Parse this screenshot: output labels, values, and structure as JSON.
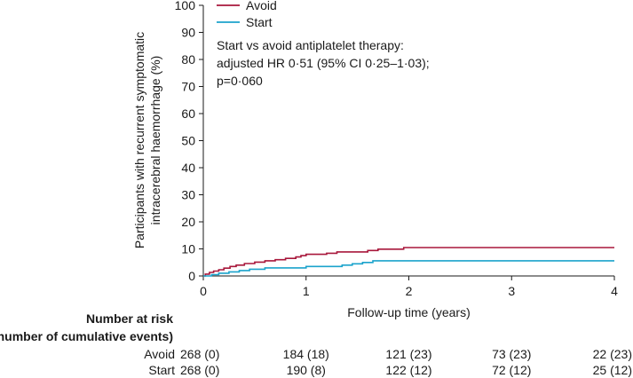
{
  "chart_data": {
    "type": "line",
    "step": true,
    "ylabel_lines": [
      "Participants with recurrent symptomatic",
      "intracerebral haemorrhage (%)"
    ],
    "xlabel": "Follow-up time (years)",
    "xlim": [
      0,
      4
    ],
    "ylim": [
      0,
      100
    ],
    "xticks": [
      0,
      1,
      2,
      3,
      4
    ],
    "yticks": [
      0,
      10,
      20,
      30,
      40,
      50,
      60,
      70,
      80,
      90,
      100
    ],
    "legend_position": "top-left",
    "annotation_lines": [
      "Start vs avoid antiplatelet therapy:",
      "adjusted HR 0·51 (95% CI 0·25–1·03);",
      "p=0·060"
    ],
    "series": [
      {
        "name": "Avoid",
        "color": "#a8173b",
        "x": [
          0,
          0.02,
          0.06,
          0.1,
          0.15,
          0.2,
          0.26,
          0.32,
          0.4,
          0.5,
          0.6,
          0.7,
          0.8,
          0.9,
          0.95,
          1.0,
          1.1,
          1.2,
          1.3,
          1.45,
          1.6,
          1.7,
          1.95,
          4.0
        ],
        "y": [
          0,
          0.7,
          1.3,
          1.8,
          2.3,
          2.9,
          3.5,
          4.0,
          4.6,
          5.1,
          5.6,
          6.0,
          6.5,
          7.0,
          7.5,
          8.0,
          8.0,
          8.4,
          8.9,
          8.9,
          9.4,
          9.9,
          10.5,
          10.5
        ]
      },
      {
        "name": "Start",
        "color": "#1ba3cc",
        "x": [
          0,
          0.08,
          0.15,
          0.25,
          0.35,
          0.45,
          0.6,
          0.75,
          0.9,
          1.0,
          1.2,
          1.35,
          1.45,
          1.55,
          1.65,
          4.0
        ],
        "y": [
          0,
          0.5,
          1.0,
          1.5,
          2.0,
          2.5,
          3.0,
          3.0,
          3.0,
          3.5,
          3.5,
          4.0,
          4.5,
          5.0,
          5.6,
          5.6
        ]
      }
    ],
    "risk_table": {
      "title_lines": [
        "Number at risk",
        "(number of cumulative events)"
      ],
      "rows": [
        {
          "label": "Avoid",
          "values": [
            "268 (0)",
            "184 (18)",
            "121 (23)",
            "73 (23)",
            "22 (23)"
          ]
        },
        {
          "label": "Start",
          "values": [
            "268 (0)",
            "190 (8)",
            "122 (12)",
            "72 (12)",
            "25 (12)"
          ]
        }
      ]
    }
  }
}
